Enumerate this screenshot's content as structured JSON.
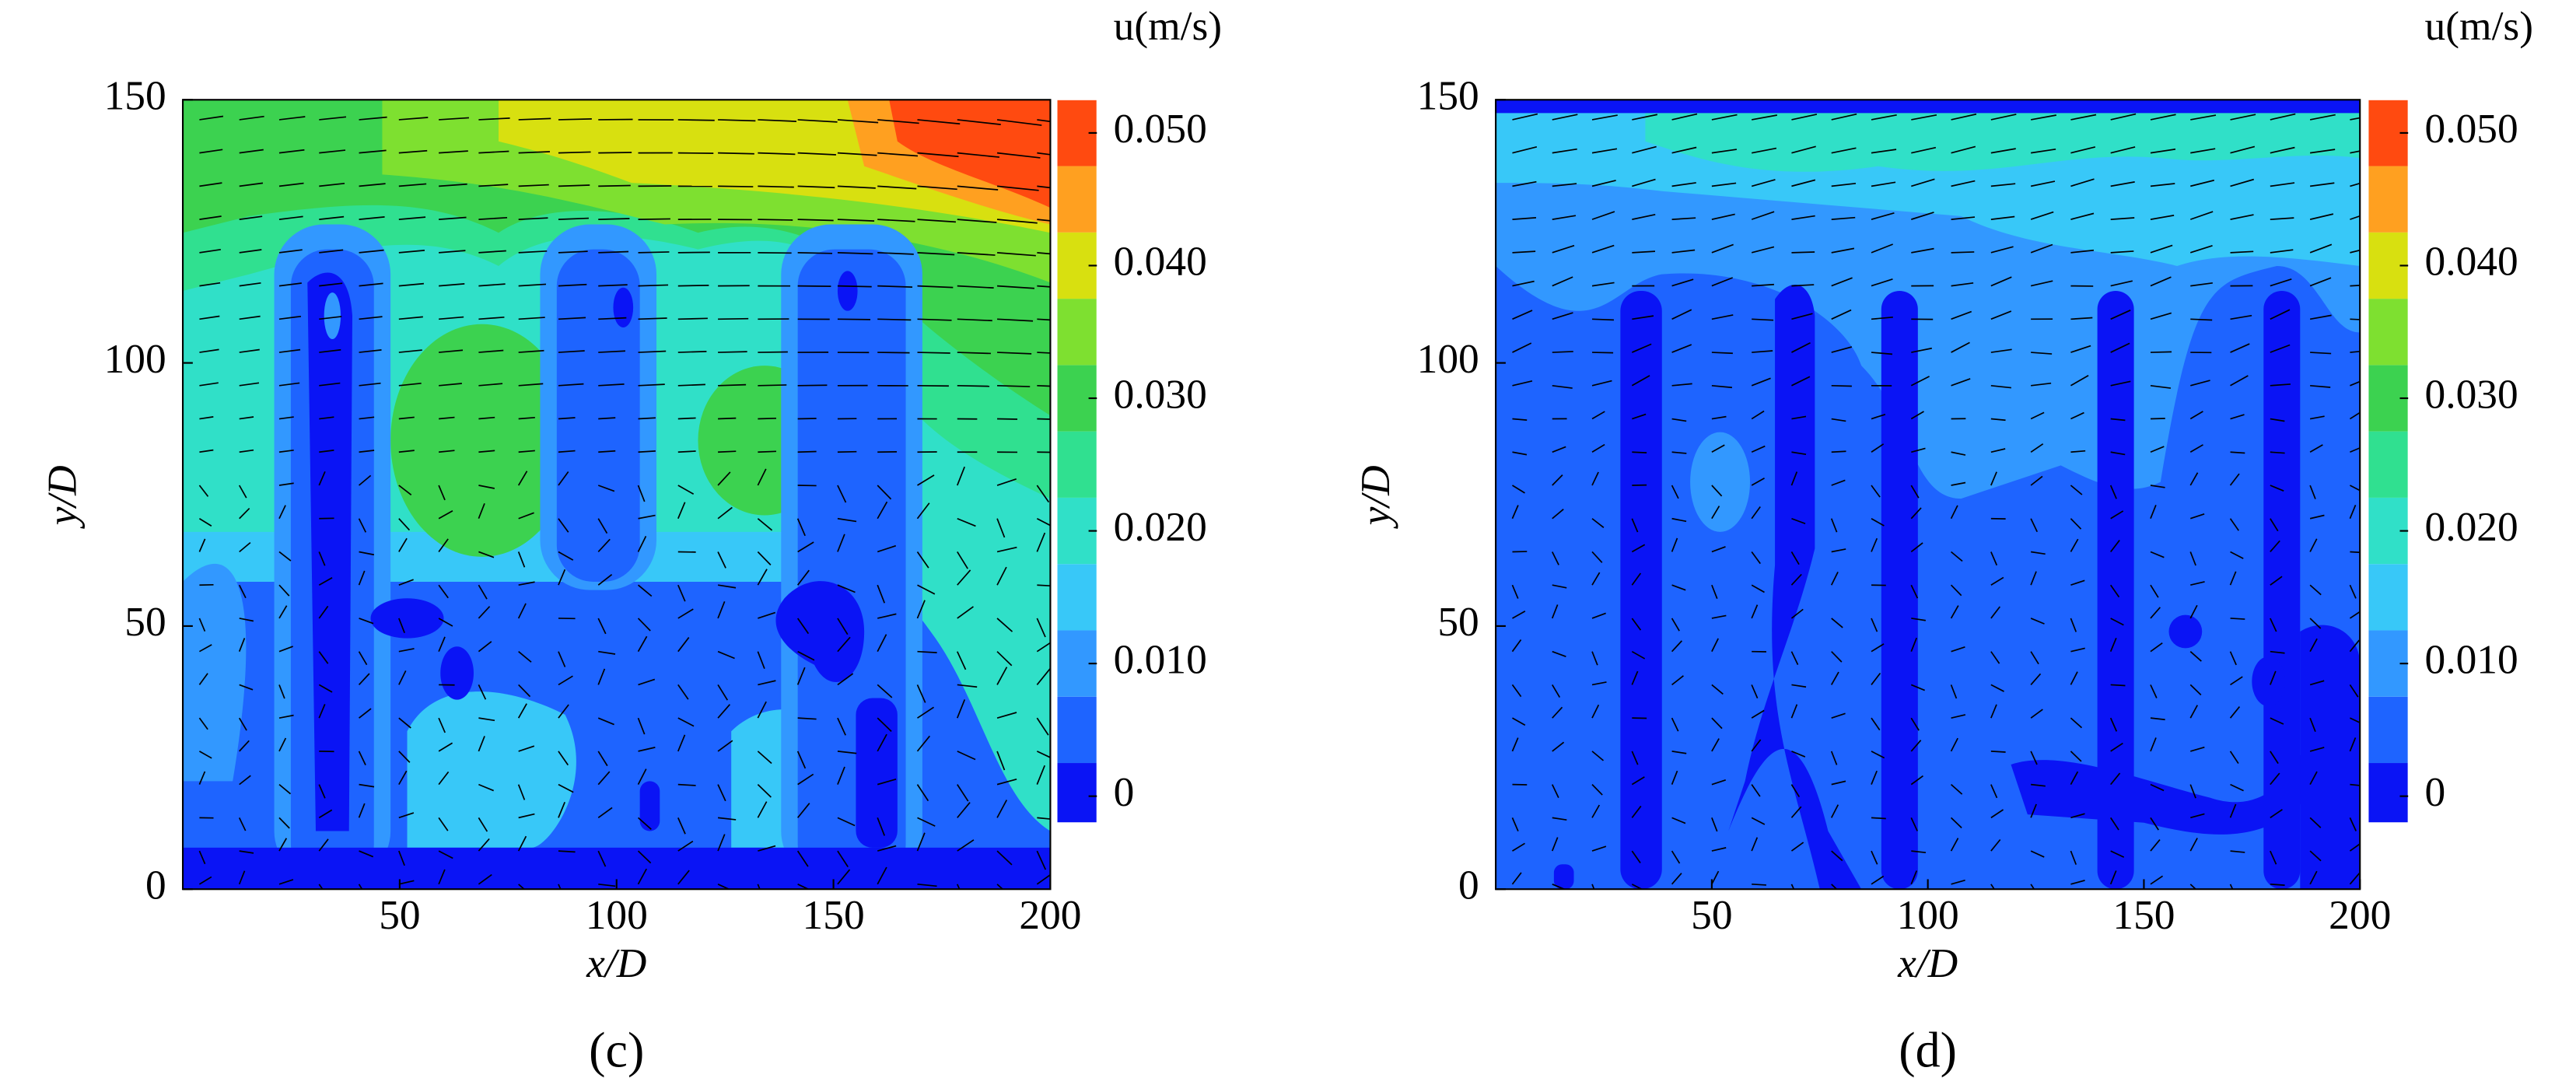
{
  "chart_data": [
    {
      "type": "contour",
      "panel_label": "(c)",
      "xlabel": "x/D",
      "ylabel": "y/D",
      "xlim": [
        0,
        200
      ],
      "ylim": [
        0,
        150
      ],
      "xticks": [
        50,
        100,
        150,
        200
      ],
      "yticks": [
        0,
        50,
        100,
        150
      ],
      "colorbar": {
        "label": "u(m/s)",
        "lim": [
          -0.002,
          0.0525
        ],
        "levels": [
          -0.002,
          0.0025,
          0.0075,
          0.0125,
          0.0175,
          0.0225,
          0.0275,
          0.0325,
          0.0375,
          0.0425,
          0.0475,
          0.0525
        ],
        "colors": [
          "#0a14f5",
          "#1e64ff",
          "#3298ff",
          "#38c8f8",
          "#30e0c8",
          "#30e090",
          "#3cd250",
          "#7ee030",
          "#d8e010",
          "#ffa020",
          "#ff4a10"
        ],
        "ticks": [
          0,
          {
            "value": 0.01,
            "label": "0.010"
          },
          {
            "value": 0.02,
            "label": "0.020"
          },
          {
            "value": 0.03,
            "label": "0.030"
          },
          {
            "value": 0.04,
            "label": "0.040"
          },
          {
            "value": 0.05,
            "label": "0.050"
          }
        ]
      }
    },
    {
      "type": "contour",
      "panel_label": "(d)",
      "xlabel": "x/D",
      "ylabel": "y/D",
      "xlim": [
        0,
        200
      ],
      "ylim": [
        0,
        150
      ],
      "xticks": [
        50,
        100,
        150,
        200
      ],
      "yticks": [
        0,
        50,
        100,
        150
      ],
      "colorbar": {
        "label": "u(m/s)",
        "lim": [
          -0.002,
          0.0525
        ],
        "levels": [
          -0.002,
          0.0025,
          0.0075,
          0.0125,
          0.0175,
          0.0225,
          0.0275,
          0.0325,
          0.0375,
          0.0425,
          0.0475,
          0.0525
        ],
        "colors": [
          "#0a14f5",
          "#1e64ff",
          "#3298ff",
          "#38c8f8",
          "#30e0c8",
          "#30e090",
          "#3cd250",
          "#7ee030",
          "#d8e010",
          "#ffa020",
          "#ff4a10"
        ],
        "ticks": [
          0,
          {
            "value": 0.01,
            "label": "0.010"
          },
          {
            "value": 0.02,
            "label": "0.020"
          },
          {
            "value": 0.03,
            "label": "0.030"
          },
          {
            "value": 0.04,
            "label": "0.040"
          },
          {
            "value": 0.05,
            "label": "0.050"
          }
        ]
      }
    }
  ]
}
